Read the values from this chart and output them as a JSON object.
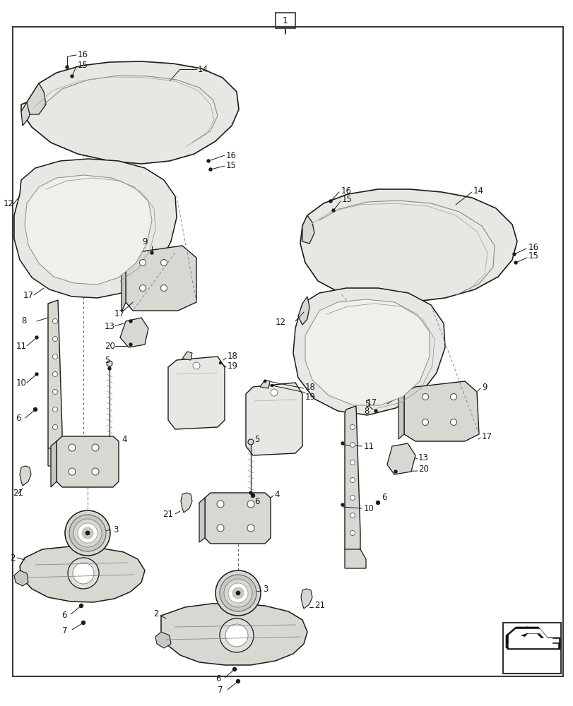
{
  "bg": "#ffffff",
  "border_color": "#2a2a2a",
  "lc": "#1a1a1a",
  "gray1": "#e8e7e3",
  "gray2": "#d8d7d2",
  "gray3": "#c8c7c2",
  "fig_w": 8.12,
  "fig_h": 10.0,
  "dpi": 100,
  "labels": {
    "title": "1",
    "parts": [
      2,
      3,
      4,
      5,
      6,
      7,
      8,
      9,
      10,
      11,
      12,
      13,
      14,
      15,
      16,
      17,
      18,
      19,
      20,
      21
    ]
  }
}
